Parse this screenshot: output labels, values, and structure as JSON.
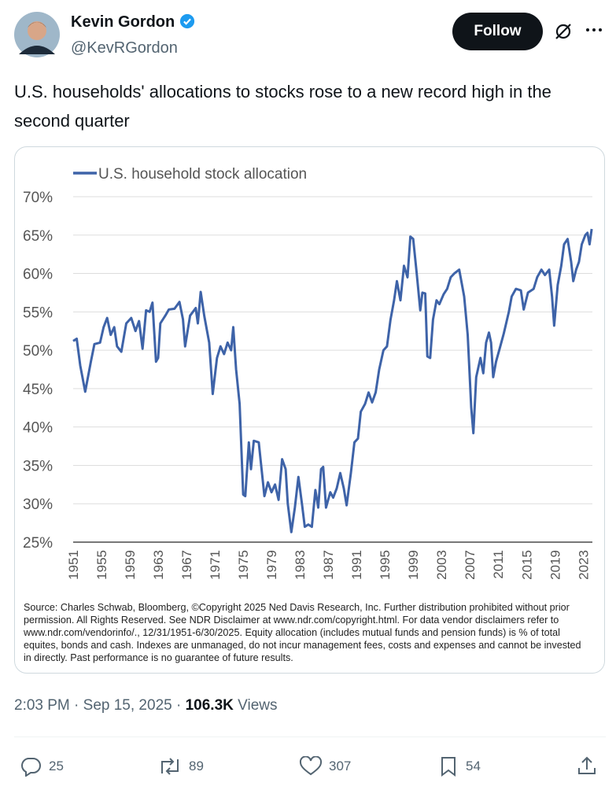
{
  "author": {
    "name": "Kevin Gordon",
    "handle": "@KevRGordon"
  },
  "follow_button": "Follow",
  "tweet_text": "U.S. households' allocations to stocks rose to a new record high in the second quarter",
  "chart_data": {
    "type": "line",
    "x": [
      1951.0,
      1951.5,
      1952.0,
      1952.7,
      1953.5,
      1954.0,
      1954.8,
      1955.3,
      1955.8,
      1956.3,
      1956.8,
      1957.2,
      1957.8,
      1958.5,
      1959.2,
      1959.8,
      1960.3,
      1960.8,
      1961.3,
      1961.8,
      1962.2,
      1962.7,
      1963.0,
      1963.3,
      1964.0,
      1964.5,
      1965.3,
      1966.0,
      1966.5,
      1966.8,
      1967.5,
      1968.3,
      1968.6,
      1969.0,
      1969.5,
      1970.2,
      1970.7,
      1971.3,
      1971.8,
      1972.3,
      1972.8,
      1973.3,
      1973.6,
      1974.0,
      1974.5,
      1975.0,
      1975.3,
      1975.8,
      1976.1,
      1976.5,
      1977.2,
      1977.6,
      1978.0,
      1978.5,
      1979.0,
      1979.5,
      1980.0,
      1980.5,
      1981.0,
      1981.3,
      1981.8,
      1982.3,
      1982.8,
      1983.3,
      1983.7,
      1984.2,
      1984.7,
      1985.2,
      1985.6,
      1986.0,
      1986.3,
      1986.7,
      1987.3,
      1987.7,
      1988.2,
      1988.7,
      1989.2,
      1989.6,
      1990.2,
      1990.7,
      1991.2,
      1991.6,
      1992.2,
      1992.7,
      1993.2,
      1993.7,
      1994.2,
      1994.8,
      1995.3,
      1995.8,
      1996.3,
      1996.7,
      1997.2,
      1997.7,
      1998.2,
      1998.6,
      1999.0,
      1999.5,
      2000.0,
      2000.3,
      2000.7,
      2001.0,
      2001.4,
      2001.8,
      2002.3,
      2002.7,
      2003.3,
      2003.8,
      2004.3,
      2004.8,
      2005.5,
      2006.2,
      2006.7,
      2007.2,
      2007.5,
      2007.9,
      2008.5,
      2008.9,
      2009.3,
      2009.7,
      2010.0,
      2010.3,
      2010.7,
      2011.3,
      2011.8,
      2012.5,
      2012.9,
      2013.5,
      2014.2,
      2014.6,
      2015.2,
      2016.0,
      2016.5,
      2017.1,
      2017.6,
      2018.2,
      2018.6,
      2018.9,
      2019.4,
      2019.9,
      2020.3,
      2020.8,
      2021.3,
      2021.6,
      2022.0,
      2022.4,
      2022.8,
      2023.3,
      2023.6,
      2023.9,
      2024.2
    ],
    "series": [
      {
        "name": "U.S. household stock allocation",
        "color": "#3e63a8",
        "values": [
          51.2,
          51.5,
          48,
          44.6,
          48.5,
          50.8,
          51,
          53,
          54.2,
          52,
          53,
          50.5,
          49.8,
          53.5,
          54.2,
          52.5,
          53.8,
          50.2,
          55.2,
          55,
          56.2,
          48.5,
          49,
          53.5,
          54.5,
          55.3,
          55.4,
          56.3,
          54,
          50.5,
          54.5,
          55.5,
          53.5,
          57.6,
          54.5,
          51,
          44.3,
          49,
          50.5,
          49.5,
          51,
          50,
          53,
          47.5,
          43,
          31.2,
          31,
          38,
          34.5,
          38.2,
          38,
          34.5,
          31,
          32.8,
          31.5,
          32.5,
          30.5,
          35.8,
          34.5,
          30,
          26.3,
          29.5,
          33.5,
          30,
          27,
          27.3,
          27,
          31.8,
          29.5,
          34.5,
          34.8,
          29.5,
          31.5,
          30.8,
          32,
          34,
          32,
          29.8,
          34,
          38,
          38.5,
          42,
          43,
          44.5,
          43.2,
          44.5,
          47.5,
          50,
          50.5,
          54,
          56.5,
          59,
          56.5,
          61,
          59.5,
          64.8,
          64.5,
          60,
          55.2,
          57.5,
          57.4,
          49.2,
          49,
          54,
          56.5,
          56,
          57.3,
          58,
          59.5,
          60,
          60.5,
          57,
          52,
          42.5,
          39.2,
          46.5,
          49,
          47,
          51,
          52.3,
          51,
          46.5,
          48.5,
          50.5,
          52.2,
          55,
          57,
          58,
          57.8,
          55.3,
          57.5,
          58,
          59.5,
          60.5,
          59.8,
          60.5,
          57,
          53.2,
          58.5,
          61,
          63.8,
          64.5,
          61.5,
          59,
          60.5,
          61.5,
          63.8,
          65,
          65.3,
          63.8,
          65.8
        ]
      }
    ],
    "xlim": [
      1951,
      2024.3
    ],
    "xticks": [
      1951,
      1955,
      1959,
      1963,
      1967,
      1971,
      1975,
      1979,
      1983,
      1987,
      1991,
      1995,
      1999,
      2003,
      2007,
      2011,
      2015,
      2019,
      2023
    ],
    "ylim": [
      25,
      70
    ],
    "yticks": [
      {
        "value": 25,
        "label": "25%"
      },
      {
        "value": 30,
        "label": "30%"
      },
      {
        "value": 35,
        "label": "35%"
      },
      {
        "value": 40,
        "label": "40%"
      },
      {
        "value": 45,
        "label": "45%"
      },
      {
        "value": 50,
        "label": "50%"
      },
      {
        "value": 55,
        "label": "55%"
      },
      {
        "value": 60,
        "label": "60%"
      },
      {
        "value": 65,
        "label": "65%"
      },
      {
        "value": 70,
        "label": "70%"
      }
    ],
    "grid": true,
    "legend": "top-left",
    "source": "Source: Charles Schwab, Bloomberg, ©Copyright 2025 Ned Davis Research, Inc. Further distribution prohibited without prior permission. All Rights Reserved. See NDR Disclaimer at www.ndr.com/copyright.html. For data vendor disclaimers refer to www.ndr.com/vendorinfo/., 12/31/1951-6/30/2025.  Equity allocation (includes mutual funds and pension funds) is % of total equites, bonds and cash. Indexes are unmanaged, do not incur management fees, costs and expenses and cannot be invested in directly.  Past performance is no guarantee of future results."
  },
  "meta": {
    "time": "2:03 PM",
    "separator": "·",
    "date": "Sep 15, 2025",
    "views": "106.3K",
    "views_label": "Views"
  },
  "stats": {
    "replies": "25",
    "reposts": "89",
    "likes": "307",
    "bookmarks": "54"
  }
}
